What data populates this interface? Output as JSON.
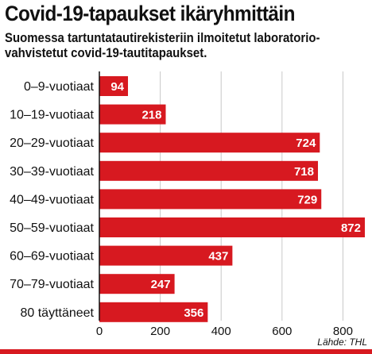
{
  "header": {
    "title": "Covid-19-tapaukset ikäryhmittäin",
    "subtitle_line1": "Suomessa tartuntatautirekisteriin ilmoitetut laboratorio-",
    "subtitle_line2": "vahvistetut covid-19-tautitapaukset."
  },
  "source": "Lähde: THL",
  "colors": {
    "bar": "#d71920",
    "grid": "#c8c8c8",
    "axis": "#111111"
  },
  "chart_data": {
    "type": "bar",
    "orientation": "horizontal",
    "categories": [
      "0–9-vuotiaat",
      "10–19-vuotiaat",
      "20–29-vuotiaat",
      "30–39-vuotiaat",
      "40–49-vuotiaat",
      "50–59-vuotiaat",
      "60–69-vuotiaat",
      "70–79-vuotiaat",
      "80 täyttäneet"
    ],
    "values": [
      94,
      218,
      724,
      718,
      729,
      872,
      437,
      247,
      356
    ],
    "xlim": [
      0,
      872
    ],
    "xticks": [
      0,
      200,
      400,
      600,
      800
    ],
    "grid": true,
    "data_labels": true
  }
}
